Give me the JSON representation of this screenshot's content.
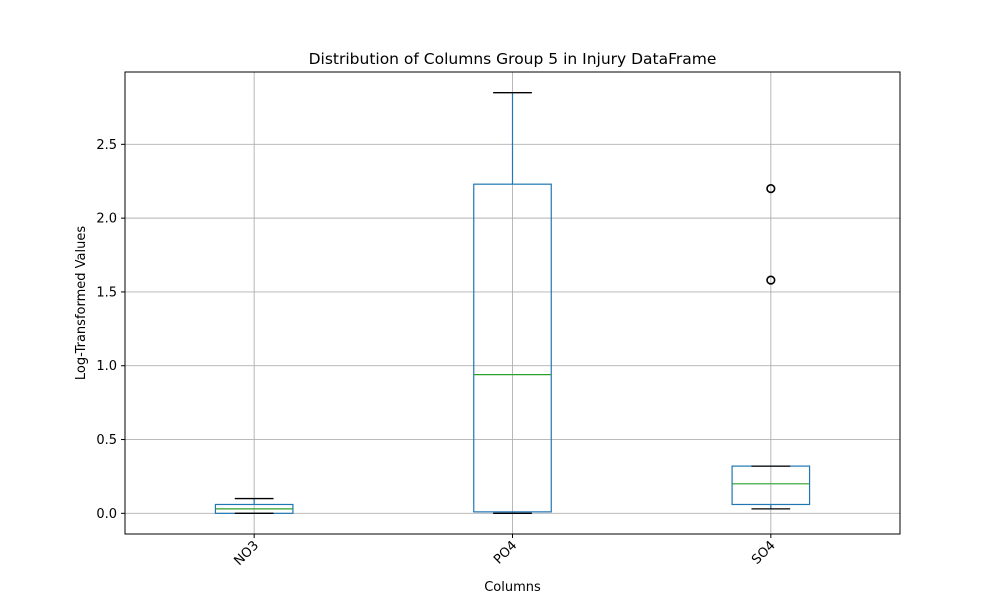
{
  "chart_data": {
    "type": "box",
    "title": "Distribution of Columns Group 5 in Injury DataFrame",
    "xlabel": "Columns",
    "ylabel": "Log-Transformed Values",
    "categories": [
      "NO3",
      "PO4",
      "SO4"
    ],
    "boxes": [
      {
        "category": "NO3",
        "whisker_low": 0.0,
        "q1": 0.0,
        "median": 0.03,
        "q3": 0.06,
        "whisker_high": 0.1,
        "outliers": []
      },
      {
        "category": "PO4",
        "whisker_low": 0.0,
        "q1": 0.01,
        "median": 0.94,
        "q3": 2.23,
        "whisker_high": 2.85,
        "outliers": []
      },
      {
        "category": "SO4",
        "whisker_low": 0.03,
        "q1": 0.06,
        "median": 0.2,
        "q3": 0.32,
        "whisker_high": 0.32,
        "outliers": [
          1.58,
          2.2
        ]
      }
    ],
    "yticks": [
      0.0,
      0.5,
      1.0,
      1.5,
      2.0,
      2.5
    ],
    "ytick_labels": [
      "0.0",
      "0.5",
      "1.0",
      "1.5",
      "2.0",
      "2.5"
    ],
    "ylim": [
      -0.14,
      2.99
    ],
    "grid": true,
    "colors": {
      "box": "#1f77b4",
      "median": "#2ca02c",
      "whisker_cap": "#000000",
      "outlier": "#000000",
      "grid": "#b0b0b0"
    }
  }
}
